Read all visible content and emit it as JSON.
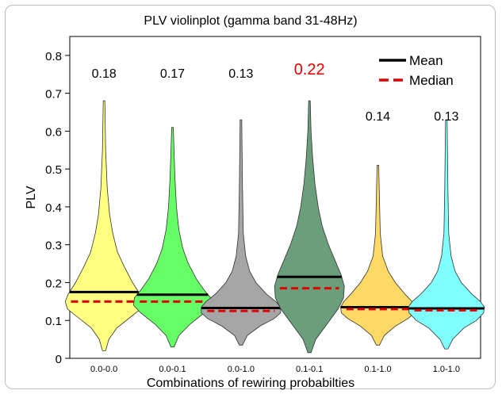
{
  "chart_data": {
    "type": "violin",
    "title": "PLV violinplot (gamma band 31-48Hz)",
    "xlabel": "Combinations of rewiring probabilties",
    "ylabel": "PLV",
    "ylim": [
      0,
      0.85
    ],
    "yticks": [
      "0",
      "0.1",
      "0.2",
      "0.3",
      "0.4",
      "0.5",
      "0.6",
      "0.7",
      "0.8"
    ],
    "legend": {
      "placement": "top-right",
      "entries": [
        {
          "label": "Mean",
          "style": "solid",
          "color": "#000000"
        },
        {
          "label": "Median",
          "style": "dashed",
          "color": "#e00000"
        }
      ]
    },
    "categories": [
      "0.0-0.0",
      "0.0-0.1",
      "0.0-1.0",
      "0.1-0.1",
      "0.1-1.0",
      "1.0-1.0"
    ],
    "violins": [
      {
        "category": "0.0-0.0",
        "annotation": "0.18",
        "annotation_color": "#000000",
        "fill": "#ffff80",
        "mean": 0.175,
        "median": 0.15,
        "min": 0.02,
        "max": 0.68,
        "profile": [
          [
            0.02,
            0.002
          ],
          [
            0.05,
            0.006
          ],
          [
            0.08,
            0.016
          ],
          [
            0.11,
            0.034
          ],
          [
            0.13,
            0.046
          ],
          [
            0.15,
            0.049
          ],
          [
            0.17,
            0.045
          ],
          [
            0.2,
            0.036
          ],
          [
            0.24,
            0.026
          ],
          [
            0.28,
            0.017
          ],
          [
            0.33,
            0.011
          ],
          [
            0.38,
            0.007
          ],
          [
            0.45,
            0.004
          ],
          [
            0.55,
            0.002
          ],
          [
            0.68,
            0.001
          ]
        ]
      },
      {
        "category": "0.0-0.1",
        "annotation": "0.17",
        "annotation_color": "#000000",
        "fill": "#66ff66",
        "mean": 0.168,
        "median": 0.15,
        "min": 0.03,
        "max": 0.61,
        "profile": [
          [
            0.03,
            0.002
          ],
          [
            0.06,
            0.008
          ],
          [
            0.09,
            0.022
          ],
          [
            0.12,
            0.04
          ],
          [
            0.14,
            0.049
          ],
          [
            0.16,
            0.048
          ],
          [
            0.18,
            0.04
          ],
          [
            0.21,
            0.03
          ],
          [
            0.25,
            0.02
          ],
          [
            0.29,
            0.013
          ],
          [
            0.34,
            0.008
          ],
          [
            0.4,
            0.005
          ],
          [
            0.48,
            0.003
          ],
          [
            0.61,
            0.001
          ]
        ]
      },
      {
        "category": "0.0-1.0",
        "annotation": "0.13",
        "annotation_color": "#000000",
        "fill": "#a6a6a6",
        "mean": 0.133,
        "median": 0.125,
        "min": 0.035,
        "max": 0.63,
        "profile": [
          [
            0.035,
            0.002
          ],
          [
            0.06,
            0.008
          ],
          [
            0.085,
            0.024
          ],
          [
            0.105,
            0.042
          ],
          [
            0.12,
            0.05
          ],
          [
            0.135,
            0.05
          ],
          [
            0.15,
            0.044
          ],
          [
            0.17,
            0.032
          ],
          [
            0.2,
            0.019
          ],
          [
            0.23,
            0.011
          ],
          [
            0.27,
            0.006
          ],
          [
            0.33,
            0.003
          ],
          [
            0.45,
            0.002
          ],
          [
            0.63,
            0.001
          ]
        ]
      },
      {
        "category": "0.1-0.1",
        "annotation": "0.22",
        "annotation_color": "#e00000",
        "fill": "#6b9e7a",
        "mean": 0.215,
        "median": 0.185,
        "min": 0.015,
        "max": 0.68,
        "profile": [
          [
            0.015,
            0.002
          ],
          [
            0.05,
            0.008
          ],
          [
            0.09,
            0.022
          ],
          [
            0.13,
            0.036
          ],
          [
            0.16,
            0.043
          ],
          [
            0.19,
            0.044
          ],
          [
            0.22,
            0.04
          ],
          [
            0.26,
            0.032
          ],
          [
            0.3,
            0.024
          ],
          [
            0.35,
            0.016
          ],
          [
            0.4,
            0.011
          ],
          [
            0.46,
            0.007
          ],
          [
            0.53,
            0.004
          ],
          [
            0.6,
            0.002
          ],
          [
            0.68,
            0.001
          ]
        ]
      },
      {
        "category": "0.1-1.0",
        "annotation": "0.14",
        "annotation_color": "#000000",
        "fill": "#ffd966",
        "mean": 0.135,
        "median": 0.13,
        "min": 0.035,
        "max": 0.51,
        "profile": [
          [
            0.035,
            0.002
          ],
          [
            0.06,
            0.008
          ],
          [
            0.085,
            0.022
          ],
          [
            0.105,
            0.038
          ],
          [
            0.12,
            0.046
          ],
          [
            0.135,
            0.047
          ],
          [
            0.15,
            0.043
          ],
          [
            0.17,
            0.034
          ],
          [
            0.2,
            0.022
          ],
          [
            0.23,
            0.013
          ],
          [
            0.27,
            0.006
          ],
          [
            0.33,
            0.003
          ],
          [
            0.42,
            0.002
          ],
          [
            0.51,
            0.001
          ]
        ]
      },
      {
        "category": "1.0-1.0",
        "annotation": "0.13",
        "annotation_color": "#000000",
        "fill": "#80ffff",
        "mean": 0.132,
        "median": 0.127,
        "min": 0.025,
        "max": 0.63,
        "profile": [
          [
            0.025,
            0.002
          ],
          [
            0.05,
            0.008
          ],
          [
            0.08,
            0.022
          ],
          [
            0.1,
            0.038
          ],
          [
            0.12,
            0.047
          ],
          [
            0.135,
            0.048
          ],
          [
            0.15,
            0.043
          ],
          [
            0.17,
            0.032
          ],
          [
            0.2,
            0.019
          ],
          [
            0.23,
            0.011
          ],
          [
            0.27,
            0.006
          ],
          [
            0.33,
            0.003
          ],
          [
            0.45,
            0.002
          ],
          [
            0.63,
            0.001
          ]
        ]
      }
    ]
  }
}
